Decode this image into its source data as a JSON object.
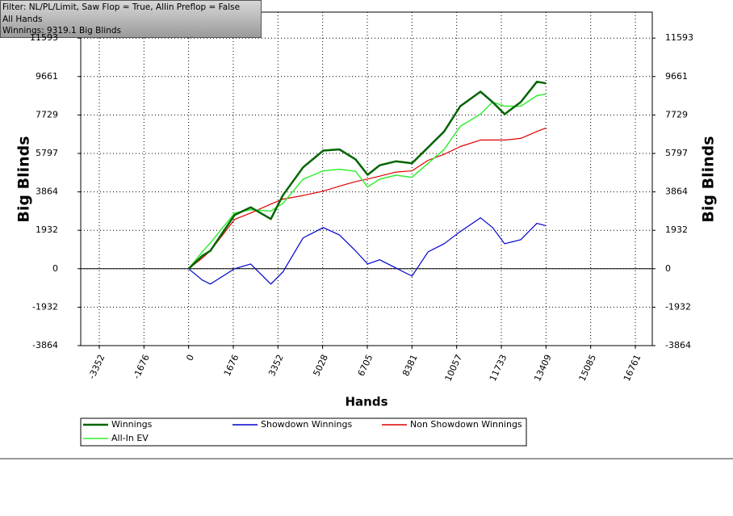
{
  "info": {
    "filter": "Filter: NL/PL/Limit, Saw Flop = True, Allin Preflop = False",
    "scope": "All Hands",
    "summary": "Winnings: 9319.1 Big Blinds"
  },
  "chart_data": {
    "type": "line",
    "x_label": "Hands",
    "y_label": "Big Blinds",
    "x": [
      0,
      514,
      817,
      1724,
      2329,
      3085,
      3539,
      4295,
      5051,
      5656,
      6261,
      6715,
      7169,
      7774,
      8379,
      8984,
      9589,
      10194,
      10950,
      11404,
      11857,
      12462,
      13067,
      13409
    ],
    "series": [
      {
        "name": "Winnings",
        "color": "#006400",
        "values": [
          0,
          650,
          900,
          2700,
          3090,
          2500,
          3700,
          5100,
          5940,
          6000,
          5500,
          4720,
          5200,
          5400,
          5300,
          6100,
          6900,
          8170,
          8900,
          8380,
          7770,
          8380,
          9400,
          9319
        ]
      },
      {
        "name": "Showdown Winnings",
        "color": "#0000cc",
        "values": [
          0,
          -570,
          -770,
          0,
          240,
          -770,
          -160,
          1550,
          2070,
          1700,
          900,
          240,
          450,
          40,
          -370,
          850,
          1260,
          1870,
          2560,
          2070,
          1260,
          1460,
          2280,
          2160
        ]
      },
      {
        "name": "Non Showdown Winnings",
        "color": "#dd0000",
        "values": [
          0,
          530,
          900,
          2480,
          2800,
          3250,
          3500,
          3680,
          3900,
          4150,
          4380,
          4510,
          4650,
          4860,
          4920,
          5450,
          5750,
          6140,
          6470,
          6470,
          6470,
          6550,
          6900,
          7080
        ]
      },
      {
        "name": "All-In EV",
        "color": "#33ee33",
        "values": [
          0,
          850,
          1300,
          2800,
          2970,
          2900,
          3290,
          4500,
          4920,
          5000,
          4900,
          4110,
          4500,
          4700,
          4600,
          5300,
          6000,
          7160,
          7770,
          8380,
          8170,
          8170,
          8700,
          8780
        ]
      }
    ],
    "xlim": [
      -4048,
      17396
    ],
    "ylim": [
      -3864,
      12900
    ],
    "xticks": [
      -3352,
      -1676,
      0,
      1676,
      3352,
      5028,
      6705,
      8381,
      10057,
      11733,
      13409,
      15085,
      16761
    ],
    "yticks": [
      -3864,
      -1932,
      0,
      1932,
      3864,
      5797,
      7729,
      9661,
      11593
    ],
    "grid": true
  }
}
